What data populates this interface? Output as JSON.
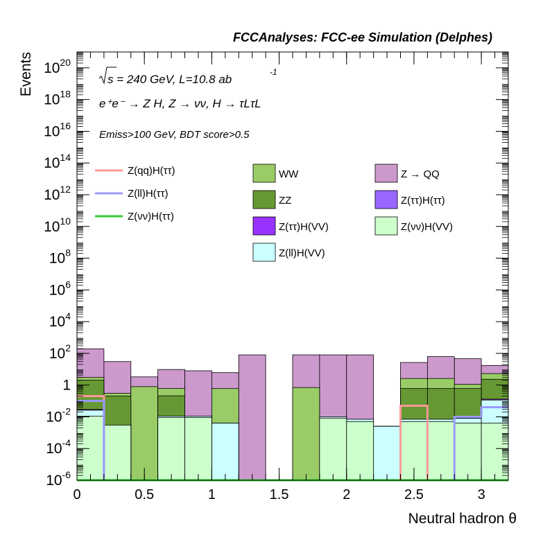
{
  "chart_data": {
    "type": "bar",
    "title": "FCCAnalyses: FCC-ee Simulation (Delphes)",
    "xlabel": "Neutral hadron θ",
    "ylabel": "Events",
    "ylog": true,
    "xlim": [
      0,
      3.2
    ],
    "ylim": [
      1e-06,
      1e+21
    ],
    "x_ticks": [
      "0",
      "0.5",
      "1",
      "1.5",
      "2",
      "2.5",
      "3"
    ],
    "y_ticks": [
      {
        "base": "10",
        "exp": "-6",
        "value": 1e-06
      },
      {
        "base": "10",
        "exp": "-4",
        "value": 0.0001
      },
      {
        "base": "10",
        "exp": "-2",
        "value": 0.01
      },
      {
        "base": "1",
        "exp": "",
        "value": 1
      },
      {
        "base": "10",
        "exp": "2",
        "value": 100.0
      },
      {
        "base": "10",
        "exp": "4",
        "value": 10000.0
      },
      {
        "base": "10",
        "exp": "6",
        "value": 1000000.0
      },
      {
        "base": "10",
        "exp": "8",
        "value": 100000000.0
      },
      {
        "base": "10",
        "exp": "10",
        "value": 10000000000.0
      },
      {
        "base": "10",
        "exp": "12",
        "value": 1000000000000.0
      },
      {
        "base": "10",
        "exp": "14",
        "value": 100000000000000.0
      },
      {
        "base": "10",
        "exp": "16",
        "value": 1e+16
      },
      {
        "base": "10",
        "exp": "18",
        "value": 1e+18
      },
      {
        "base": "10",
        "exp": "20",
        "value": 1e+20
      }
    ],
    "annotations": {
      "sqrt_s": "s = 240 GeV, L=10.8 ab",
      "lumi_exp": "-1",
      "process": "e⁺e⁻ → Z H, Z → νν, H → τLτL",
      "cuts": "Emiss>100 GeV, BDT score>0.5"
    },
    "bin_edges": [
      0,
      0.2,
      0.4,
      0.6,
      0.8,
      1.0,
      1.2,
      1.4,
      1.6,
      1.8,
      2.0,
      2.2,
      2.4,
      2.6,
      2.8,
      3.0,
      3.2
    ],
    "stacked_series": [
      {
        "name": "Z(νν)H(VV)",
        "color": "#ccffcc",
        "values": [
          0.011,
          0.003,
          0,
          0.009,
          0.009,
          0,
          0,
          0,
          0,
          0.008,
          0.005,
          0,
          0.005,
          0.005,
          0.004,
          0.004
        ]
      },
      {
        "name": "Z(ll)H(VV)",
        "color": "#ccffff",
        "values": [
          0.015,
          0,
          0,
          0.002,
          0.002,
          0.004,
          0,
          0,
          0,
          0.002,
          0.002,
          0.0025,
          0.002,
          0.002,
          0.004,
          0.11
        ]
      },
      {
        "name": "Z(ττ)H(VV)",
        "color": "#9933ff",
        "values": [
          0.003,
          0,
          0,
          0,
          0,
          0,
          0,
          0,
          0,
          0,
          0,
          0,
          0,
          0,
          0,
          0.015
        ]
      },
      {
        "name": "Z(ττ)H(ττ)",
        "color": "#9966ff",
        "values": [
          0,
          0,
          0,
          0,
          0,
          0,
          0,
          0,
          0,
          0,
          0,
          0,
          0,
          0,
          0,
          0
        ]
      },
      {
        "name": "ZZ",
        "color": "#669933",
        "values": [
          2.0,
          0.2,
          0,
          0.2,
          0,
          0,
          0,
          0,
          0,
          0,
          0,
          0,
          0.6,
          0.6,
          0.6,
          2.2
        ]
      },
      {
        "name": "WW",
        "color": "#99cc66",
        "values": [
          1.0,
          0.1,
          0.8,
          0.4,
          0,
          0.6,
          0,
          0,
          0.7,
          0,
          0,
          0,
          2.0,
          2.0,
          0.5,
          3.0
        ]
      },
      {
        "name": "Z → QQ",
        "color": "#cc99cc",
        "values": [
          190,
          30,
          2.5,
          9,
          8,
          5.5,
          80,
          0,
          80,
          80,
          80,
          0,
          24,
          60,
          45,
          12
        ]
      }
    ],
    "line_series": [
      {
        "name": "Z(qq)H(ττ)",
        "color": "#ff9999",
        "values": [
          0.2,
          0,
          0,
          0,
          0,
          0,
          0,
          0,
          0,
          0,
          0,
          0,
          0.05,
          0,
          0,
          0
        ]
      },
      {
        "name": "Z(ll)H(ττ)",
        "color": "#9999ff",
        "values": [
          0.1,
          0,
          0,
          0,
          0,
          0,
          0,
          0,
          0,
          0,
          0,
          0,
          0,
          0,
          0.01,
          0.04
        ]
      },
      {
        "name": "Z(νν)H(ττ)",
        "color": "#33cc33",
        "values": [
          0,
          0,
          0,
          0,
          0,
          0,
          0,
          0,
          0,
          0,
          0,
          0,
          0,
          0,
          0,
          0
        ]
      }
    ],
    "legend": {
      "lines": [
        {
          "label": "Z(qq)H(ττ)",
          "color": "#ff9999"
        },
        {
          "label": "Z(ll)H(ττ)",
          "color": "#9999ff"
        },
        {
          "label": "Z(νν)H(ττ)",
          "color": "#33cc33"
        }
      ],
      "boxes": [
        {
          "label": "WW",
          "color": "#99cc66"
        },
        {
          "label": "Z → QQ",
          "color": "#cc99cc"
        },
        {
          "label": "ZZ",
          "color": "#669933"
        },
        {
          "label": "Z(ττ)H(ττ)",
          "color": "#9966ff"
        },
        {
          "label": "Z(ττ)H(VV)",
          "color": "#9933ff"
        },
        {
          "label": "Z(νν)H(VV)",
          "color": "#ccffcc"
        },
        {
          "label": "Z(ll)H(VV)",
          "color": "#ccffff"
        }
      ]
    }
  }
}
